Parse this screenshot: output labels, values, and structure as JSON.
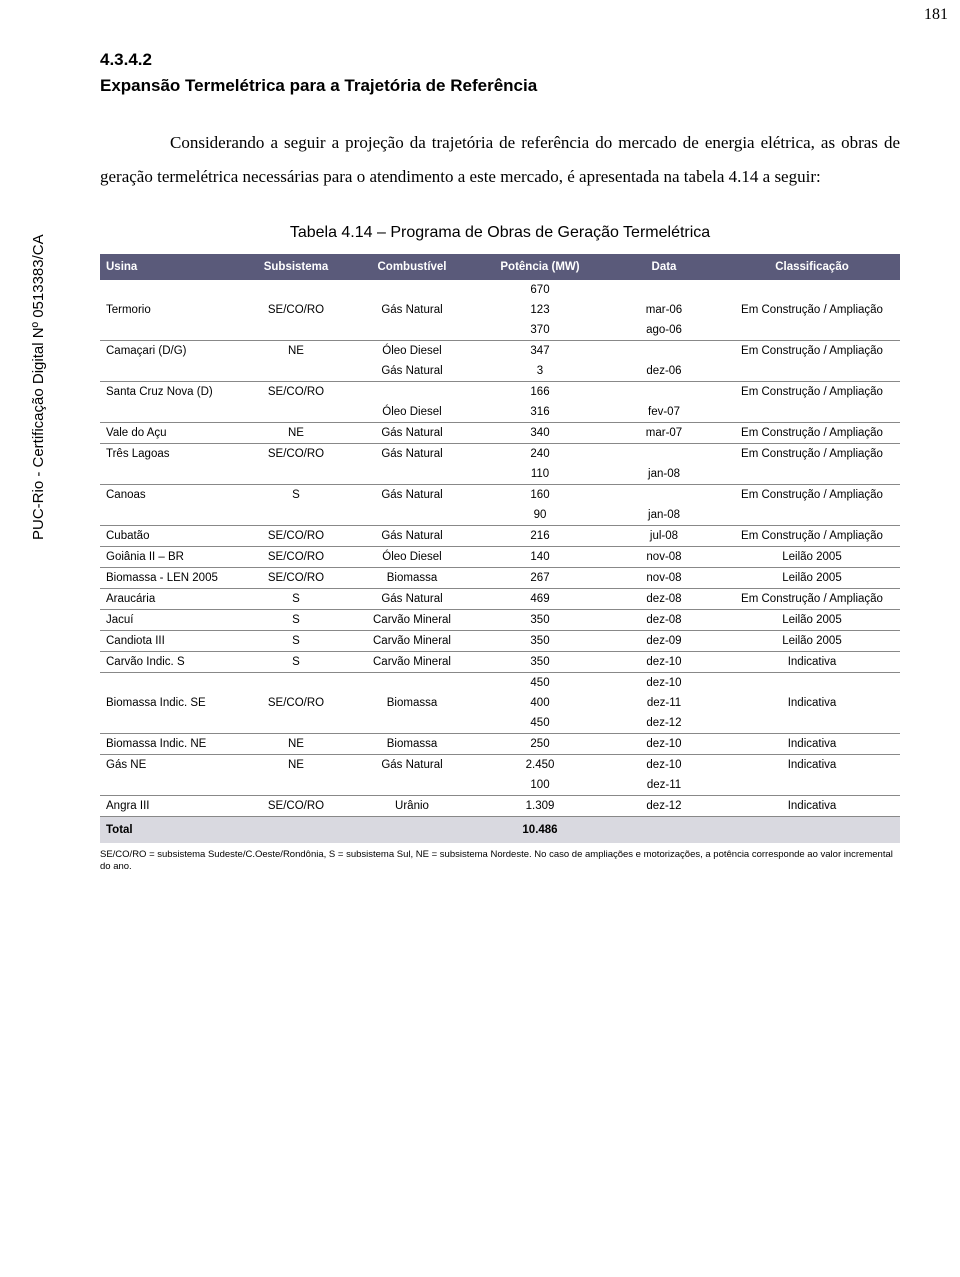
{
  "page_number": "181",
  "watermark": "PUC-Rio - Certificação Digital Nº 0513383/CA",
  "section_number": "4.3.4.2",
  "section_title": "Expansão Termelétrica para a Trajetória de Referência",
  "paragraph": "Considerando a seguir a projeção da trajetória de referência do mercado de energia elétrica, as obras de geração termelétrica necessárias para o atendimento a este mercado, é apresentada na tabela 4.14 a seguir:",
  "table_caption": "Tabela 4.14 – Programa de Obras de Geração Termelétrica",
  "columns": [
    "Usina",
    "Subsistema",
    "Combustível",
    "Potência (MW)",
    "Data",
    "Classificação"
  ],
  "groups": [
    {
      "usina": "Termorio",
      "sub": "SE/CO/RO",
      "class": "Em Construção / Ampliação",
      "lines": [
        {
          "comb": "",
          "pot": "670",
          "data": ""
        },
        {
          "comb": "Gás Natural",
          "pot": "123",
          "data": "mar-06"
        },
        {
          "comb": "",
          "pot": "370",
          "data": "ago-06"
        }
      ]
    },
    {
      "usina": "Camaçari (D/G)",
      "sub": "NE",
      "class": "Em Construção / Ampliação",
      "lines": [
        {
          "comb": "Óleo Diesel",
          "pot": "347",
          "data": ""
        },
        {
          "comb": "Gás Natural",
          "pot": "3",
          "data": "dez-06"
        }
      ]
    },
    {
      "usina": "Santa Cruz Nova (D)",
      "sub": "SE/CO/RO",
      "class": "Em Construção / Ampliação",
      "lines": [
        {
          "comb": "",
          "pot": "166",
          "data": ""
        },
        {
          "comb": "Óleo Diesel",
          "pot": "316",
          "data": "fev-07"
        }
      ]
    },
    {
      "usina": "Vale do Açu",
      "sub": "NE",
      "class": "Em Construção / Ampliação",
      "lines": [
        {
          "comb": "Gás Natural",
          "pot": "340",
          "data": "mar-07"
        }
      ]
    },
    {
      "usina": "Três Lagoas",
      "sub": "SE/CO/RO",
      "class": "Em Construção / Ampliação",
      "lines": [
        {
          "comb": "Gás Natural",
          "pot": "240",
          "data": ""
        },
        {
          "comb": "",
          "pot": "110",
          "data": "jan-08"
        }
      ]
    },
    {
      "usina": "Canoas",
      "sub": "S",
      "class": "Em Construção / Ampliação",
      "lines": [
        {
          "comb": "Gás Natural",
          "pot": "160",
          "data": ""
        },
        {
          "comb": "",
          "pot": "90",
          "data": "jan-08"
        }
      ]
    },
    {
      "usina": "Cubatão",
      "sub": "SE/CO/RO",
      "class": "Em Construção / Ampliação",
      "lines": [
        {
          "comb": "Gás Natural",
          "pot": "216",
          "data": "jul-08"
        }
      ]
    },
    {
      "usina": "Goiânia II – BR",
      "sub": "SE/CO/RO",
      "class": "Leilão 2005",
      "lines": [
        {
          "comb": "Óleo Diesel",
          "pot": "140",
          "data": "nov-08"
        }
      ]
    },
    {
      "usina": "Biomassa - LEN 2005",
      "sub": "SE/CO/RO",
      "class": "Leilão 2005",
      "lines": [
        {
          "comb": "Biomassa",
          "pot": "267",
          "data": "nov-08"
        }
      ]
    },
    {
      "usina": "Araucária",
      "sub": "S",
      "class": "Em Construção / Ampliação",
      "lines": [
        {
          "comb": "Gás Natural",
          "pot": "469",
          "data": "dez-08"
        }
      ]
    },
    {
      "usina": "Jacuí",
      "sub": "S",
      "class": "Leilão 2005",
      "lines": [
        {
          "comb": "Carvão Mineral",
          "pot": "350",
          "data": "dez-08"
        }
      ]
    },
    {
      "usina": "Candiota III",
      "sub": "S",
      "class": "Leilão 2005",
      "lines": [
        {
          "comb": "Carvão Mineral",
          "pot": "350",
          "data": "dez-09"
        }
      ]
    },
    {
      "usina": "Carvão Indic. S",
      "sub": "S",
      "class": "Indicativa",
      "lines": [
        {
          "comb": "Carvão Mineral",
          "pot": "350",
          "data": "dez-10"
        }
      ]
    },
    {
      "usina": "Biomassa Indic. SE",
      "sub": "SE/CO/RO",
      "class": "Indicativa",
      "lines": [
        {
          "comb": "",
          "pot": "450",
          "data": "dez-10"
        },
        {
          "comb": "Biomassa",
          "pot": "400",
          "data": "dez-11"
        },
        {
          "comb": "",
          "pot": "450",
          "data": "dez-12"
        }
      ]
    },
    {
      "usina": "Biomassa Indic. NE",
      "sub": "NE",
      "class": "Indicativa",
      "lines": [
        {
          "comb": "Biomassa",
          "pot": "250",
          "data": "dez-10"
        }
      ]
    },
    {
      "usina": "Gás NE",
      "sub": "NE",
      "class": "Indicativa",
      "lines": [
        {
          "comb": "Gás Natural",
          "pot": "2.450",
          "data": "dez-10"
        },
        {
          "comb": "",
          "pot": "100",
          "data": "dez-11"
        }
      ]
    },
    {
      "usina": "Angra III",
      "sub": "SE/CO/RO",
      "class": "Indicativa",
      "lines": [
        {
          "comb": "Urânio",
          "pot": "1.309",
          "data": "dez-12"
        }
      ]
    }
  ],
  "total_label": "Total",
  "total_value": "10.486",
  "footnote": "SE/CO/RO = subsistema Sudeste/C.Oeste/Rondônia, S = subsistema Sul, NE = subsistema Nordeste. No caso de ampliações e motorizações, a potência corresponde ao valor incremental do ano."
}
